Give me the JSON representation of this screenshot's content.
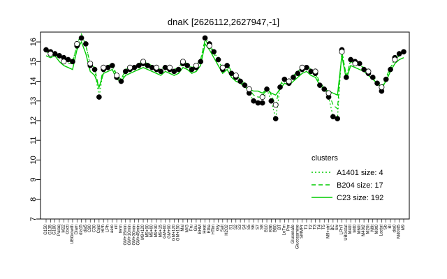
{
  "chart_data": {
    "type": "line",
    "title": "dnaK [2626112,2627947,-1]",
    "xlabel": "",
    "ylabel": "",
    "ylim": [
      7,
      16.5
    ],
    "yticks": [
      7,
      8,
      9,
      10,
      11,
      12,
      13,
      14,
      15,
      16
    ],
    "categories": [
      "G150",
      "G135",
      "G180",
      "Paraq",
      "M22",
      "Oxctl",
      "UBGrowth",
      "Diam",
      "dia15",
      "dia5",
      "C90",
      "C30",
      "Cold",
      "HPh",
      "LPh",
      "aero",
      "nit",
      "ferm",
      "GM+15min",
      "GM+10min",
      "GM+30min",
      "GM+45min",
      "M9+120",
      "M9+90",
      "M9+60",
      "M9+30",
      "M9+15",
      "GM+60",
      "GM+90",
      "GM+120",
      "GM+150",
      "Mal",
      "M/G",
      "Fru",
      "Glu",
      "BHM",
      "Heat",
      "Etha",
      "HTim",
      "Gly",
      "Salt",
      "H2O2",
      "S1",
      "S2",
      "S3",
      "S4",
      "S5",
      "S6",
      "S7",
      "S8",
      "B10",
      "B36",
      "B60",
      "BT",
      "LoTm",
      "Pyr",
      "Gluconate",
      "Glucosamine",
      "SMMPr",
      "T1",
      "T2",
      "T3",
      "T4",
      "T5",
      "M9+ctrl",
      "BC",
      "Sw",
      "LPhT",
      "UBGstat",
      "M40t",
      "M40",
      "M60t",
      "M40t2",
      "M20t",
      "M9t",
      "M0t0",
      "Lactat",
      "Sb",
      "BI",
      "dia0",
      "M40t45",
      "M9"
    ],
    "series": [
      {
        "name": "",
        "values": [
          15.6,
          15.5,
          15.4,
          15.3,
          15.2,
          15.1,
          15.0,
          15.8,
          16.2,
          15.9,
          14.8,
          14.6,
          13.2,
          14.6,
          14.7,
          14.8,
          14.2,
          14.0,
          14.5,
          14.6,
          14.7,
          14.8,
          14.9,
          14.8,
          14.7,
          14.6,
          14.5,
          14.7,
          14.6,
          14.5,
          14.6,
          14.9,
          14.8,
          14.6,
          14.7,
          15.0,
          16.2,
          15.9,
          15.5,
          15.1,
          14.6,
          14.8,
          14.4,
          14.2,
          14.0,
          13.8,
          13.4,
          13.0,
          12.9,
          12.9,
          13.6,
          13.0,
          12.1,
          13.7,
          14.1,
          13.9,
          14.2,
          14.4,
          14.6,
          14.7,
          14.5,
          14.4,
          13.8,
          13.6,
          13.2,
          12.2,
          12.1,
          15.6,
          14.2,
          15.1,
          15.0,
          14.9,
          14.6,
          14.4,
          14.2,
          13.9,
          13.5,
          14.1,
          14.6,
          15.2,
          15.4,
          15.5
        ]
      },
      {
        "name": "",
        "values": [
          15.5,
          15.4,
          15.5,
          15.2,
          15.0,
          14.9,
          14.9,
          15.9,
          16.4,
          15.8,
          14.9,
          14.7,
          13.6,
          14.7,
          14.8,
          14.9,
          14.3,
          14.1,
          14.6,
          14.7,
          14.8,
          14.9,
          15.0,
          14.9,
          14.8,
          14.7,
          14.6,
          14.8,
          14.7,
          14.6,
          14.7,
          15.0,
          14.9,
          14.7,
          14.8,
          15.1,
          16.1,
          15.8,
          15.4,
          15.0,
          14.7,
          14.9,
          14.5,
          14.3,
          14.1,
          13.9,
          13.6,
          13.3,
          13.2,
          13.2,
          13.7,
          13.3,
          12.8,
          13.8,
          14.2,
          14.0,
          14.3,
          14.5,
          14.7,
          14.8,
          14.6,
          14.5,
          13.9,
          13.7,
          13.4,
          12.8,
          12.6,
          15.5,
          14.3,
          15.0,
          14.9,
          14.8,
          14.7,
          14.5,
          14.3,
          14.0,
          13.7,
          14.2,
          14.7,
          15.1,
          15.3,
          15.4
        ]
      },
      {
        "name": "",
        "values": [
          15.3,
          15.2,
          15.3,
          15.0,
          14.8,
          14.7,
          14.6,
          15.6,
          16.0,
          15.4,
          14.5,
          14.3,
          13.7,
          14.4,
          14.5,
          14.6,
          14.1,
          14.0,
          14.3,
          14.4,
          14.5,
          14.6,
          14.7,
          14.6,
          14.5,
          14.4,
          14.3,
          14.5,
          14.4,
          14.3,
          14.4,
          14.7,
          14.6,
          14.4,
          14.5,
          14.8,
          15.9,
          15.6,
          15.2,
          14.8,
          14.4,
          14.6,
          14.2,
          14.0,
          13.9,
          13.7,
          13.6,
          13.5,
          13.5,
          13.4,
          13.6,
          13.4,
          13.3,
          13.6,
          13.9,
          13.8,
          14.0,
          14.2,
          14.4,
          14.5,
          14.3,
          14.2,
          13.8,
          13.6,
          13.5,
          13.4,
          13.3,
          15.3,
          14.1,
          14.8,
          14.7,
          14.6,
          14.5,
          14.3,
          14.1,
          13.9,
          13.7,
          14.0,
          14.5,
          14.9,
          15.1,
          15.2
        ]
      }
    ],
    "legend": {
      "title": "clusters",
      "position": "bottom-right",
      "entries": [
        "A1401 size: 4",
        "B204 size: 17",
        "C23 size: 192"
      ],
      "styles": [
        "dotted",
        "dashed",
        "solid"
      ]
    },
    "series_color": "#00cc00",
    "point_color": "#000000"
  }
}
